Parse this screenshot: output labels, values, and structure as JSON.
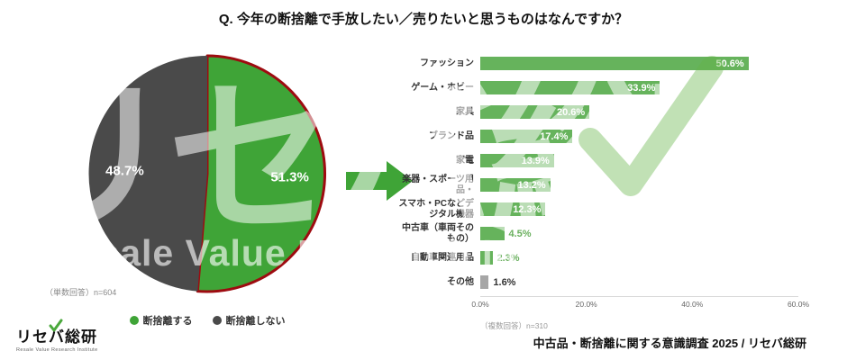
{
  "title": "Q. 今年の断捨離で手放したい／売りたいと思うものはなんですか？",
  "footer": {
    "credit": "中古品・断捨離に関する意識調査 2025 / リセバ総研"
  },
  "logo": {
    "jp": "リセバ総研",
    "en": "Resale Value Research Institute"
  },
  "watermark": {
    "jp": "リセバ総研",
    "en": "Resale Value Research Institute"
  },
  "colors": {
    "pie_green": "#3fa437",
    "pie_dark": "#4a4a4a",
    "red_outline": "#9e0b10",
    "bar_green": "#66b35c",
    "bar_gray": "#a6a6a6",
    "value_green": "#6ab05e",
    "value_dark": "#333333",
    "arrow_green": "#3fa437"
  },
  "chart_data": [
    {
      "type": "pie",
      "labels": [
        "断捨離する",
        "断捨離しない"
      ],
      "values": [
        51.3,
        48.7
      ],
      "value_labels": [
        "51.3%",
        "48.7%"
      ],
      "colors": [
        "#3fa437",
        "#4a4a4a"
      ],
      "note": "（単数回答）n=604"
    },
    {
      "type": "bar",
      "orientation": "horizontal",
      "categories": [
        "ファッション",
        "ゲーム・ホビー",
        "家具",
        "ブランド品",
        "家電",
        "楽器・スポーツ用品・",
        "スマホ・PCなどデジタル機器",
        "中古車（車両そのもの）",
        "自動車関連用品",
        "その他"
      ],
      "values": [
        50.6,
        33.9,
        20.6,
        17.4,
        13.9,
        13.2,
        12.3,
        4.5,
        2.3,
        1.6
      ],
      "value_labels": [
        "50.6%",
        "33.9%",
        "20.6%",
        "17.4%",
        "13.9%",
        "13.2%",
        "12.3%",
        "4.5%",
        "2.3%",
        "1.6%"
      ],
      "colors": [
        "#66b35c",
        "#66b35c",
        "#66b35c",
        "#66b35c",
        "#66b35c",
        "#66b35c",
        "#66b35c",
        "#66b35c",
        "#66b35c",
        "#a6a6a6"
      ],
      "xlim": [
        0,
        60
      ],
      "xticks": [
        "0.0%",
        "20.0%",
        "40.0%",
        "60.0%"
      ],
      "note": "（複数回答）n=310"
    }
  ]
}
